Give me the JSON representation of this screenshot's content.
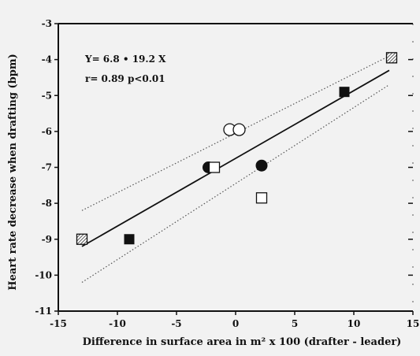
{
  "chart_data": {
    "type": "scatter",
    "xlabel": "Difference in surface area in m² x 100 (drafter - leader)",
    "ylabel": "Heart rate decrease when drafting (bpm)",
    "xlim": [
      -15,
      15
    ],
    "ylim": [
      -11,
      -3
    ],
    "xticks": [
      -15,
      -10,
      -5,
      0,
      5,
      10,
      15
    ],
    "xtick_labels": [
      "-15",
      "-10",
      "-5",
      "0",
      "5",
      "10",
      "15"
    ],
    "yticks": [
      -3,
      -4,
      -5,
      -6,
      -7,
      -8,
      -9,
      -10,
      -11
    ],
    "ytick_labels": [
      "-3",
      "-4",
      "-5",
      "-6",
      "-7",
      "-8",
      "-9",
      "-10",
      "-11"
    ],
    "grid": false,
    "annotations": [
      "Y= 6.8 • 19.2 X",
      "r= 0.89 p<0.01"
    ],
    "regression": {
      "x": [
        -13,
        13
      ],
      "y": [
        -9.2,
        -4.3
      ]
    },
    "confidence_band": {
      "upper": {
        "x": [
          -13,
          13
        ],
        "y": [
          -8.2,
          -3.9
        ]
      },
      "lower": {
        "x": [
          -13,
          13
        ],
        "y": [
          -10.2,
          -4.7
        ]
      }
    },
    "points": [
      {
        "x": -13,
        "y": -9.0,
        "marker": "hatched-square"
      },
      {
        "x": -9,
        "y": -9.0,
        "marker": "filled-square"
      },
      {
        "x": -2.3,
        "y": -7.0,
        "marker": "filled-circle"
      },
      {
        "x": -1.8,
        "y": -7.0,
        "marker": "open-square"
      },
      {
        "x": -0.5,
        "y": -5.95,
        "marker": "open-circle"
      },
      {
        "x": 0.3,
        "y": -5.95,
        "marker": "open-circle"
      },
      {
        "x": 2.2,
        "y": -6.95,
        "marker": "filled-circle"
      },
      {
        "x": 2.2,
        "y": -7.85,
        "marker": "open-square"
      },
      {
        "x": 9.2,
        "y": -4.9,
        "marker": "filled-square"
      },
      {
        "x": 13.2,
        "y": -3.95,
        "marker": "hatched-square"
      }
    ]
  }
}
